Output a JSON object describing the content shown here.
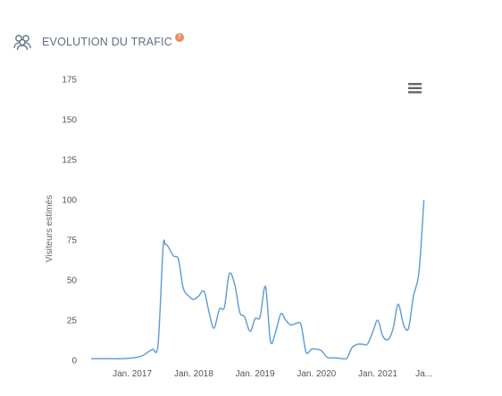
{
  "header": {
    "title": "EVOLUTION DU TRAFIC",
    "icon": "users-icon",
    "badge_icon": "info-icon",
    "badge_text": "!"
  },
  "colors": {
    "series": "#5b9bd5",
    "title": "#5f6f85",
    "badge": "#e58f5f",
    "grid": "#e6e6e6"
  },
  "menu": {
    "icon": "hamburger-menu-icon"
  },
  "chart_data": {
    "type": "line",
    "ylabel": "Visiteurs estimés",
    "xlabel": "",
    "ylim": [
      0,
      175
    ],
    "yticks": [
      0,
      25,
      50,
      75,
      100,
      125,
      150,
      175
    ],
    "xlim": [
      2016.3,
      2021.8
    ],
    "xticks": [
      {
        "label": "Jan. 2017",
        "value": 2017.0
      },
      {
        "label": "Jan. 2018",
        "value": 2018.0
      },
      {
        "label": "Jan. 2019",
        "value": 2019.0
      },
      {
        "label": "Jan. 2020",
        "value": 2020.0
      },
      {
        "label": "Jan. 2021",
        "value": 2021.0
      },
      {
        "label": "Ja...",
        "value": 2021.75
      }
    ],
    "grid": false,
    "series": [
      {
        "x": [
          2016.33,
          2016.5,
          2016.67,
          2016.83,
          2017.0,
          2017.08,
          2017.17,
          2017.25,
          2017.33,
          2017.42,
          2017.5,
          2017.54,
          2017.58,
          2017.67,
          2017.75,
          2017.83,
          2017.92,
          2018.0,
          2018.08,
          2018.17,
          2018.25,
          2018.33,
          2018.42,
          2018.5,
          2018.58,
          2018.67,
          2018.75,
          2018.83,
          2018.92,
          2019.0,
          2019.08,
          2019.17,
          2019.25,
          2019.33,
          2019.42,
          2019.5,
          2019.58,
          2019.67,
          2019.75,
          2019.83,
          2019.92,
          2020.0,
          2020.08,
          2020.17,
          2020.25,
          2020.33,
          2020.42,
          2020.5,
          2020.58,
          2020.67,
          2020.75,
          2020.83,
          2020.92,
          2021.0,
          2021.08,
          2021.17,
          2021.25,
          2021.33,
          2021.42,
          2021.5,
          2021.58,
          2021.67,
          2021.75
        ],
        "y": [
          1,
          1,
          1,
          1,
          1.5,
          2,
          3,
          5,
          7,
          10,
          70,
          72,
          71,
          65,
          63,
          45,
          40,
          38,
          40,
          43,
          30,
          20,
          32,
          33,
          54,
          47,
          30,
          27,
          18,
          26,
          27,
          46,
          12,
          17,
          29,
          25,
          22,
          23,
          22,
          5,
          7,
          7,
          6,
          2,
          1.5,
          1.5,
          1,
          1.5,
          8,
          10,
          10,
          10,
          18,
          25,
          15,
          13,
          20,
          35,
          22,
          20,
          40,
          55,
          100
        ]
      }
    ]
  }
}
